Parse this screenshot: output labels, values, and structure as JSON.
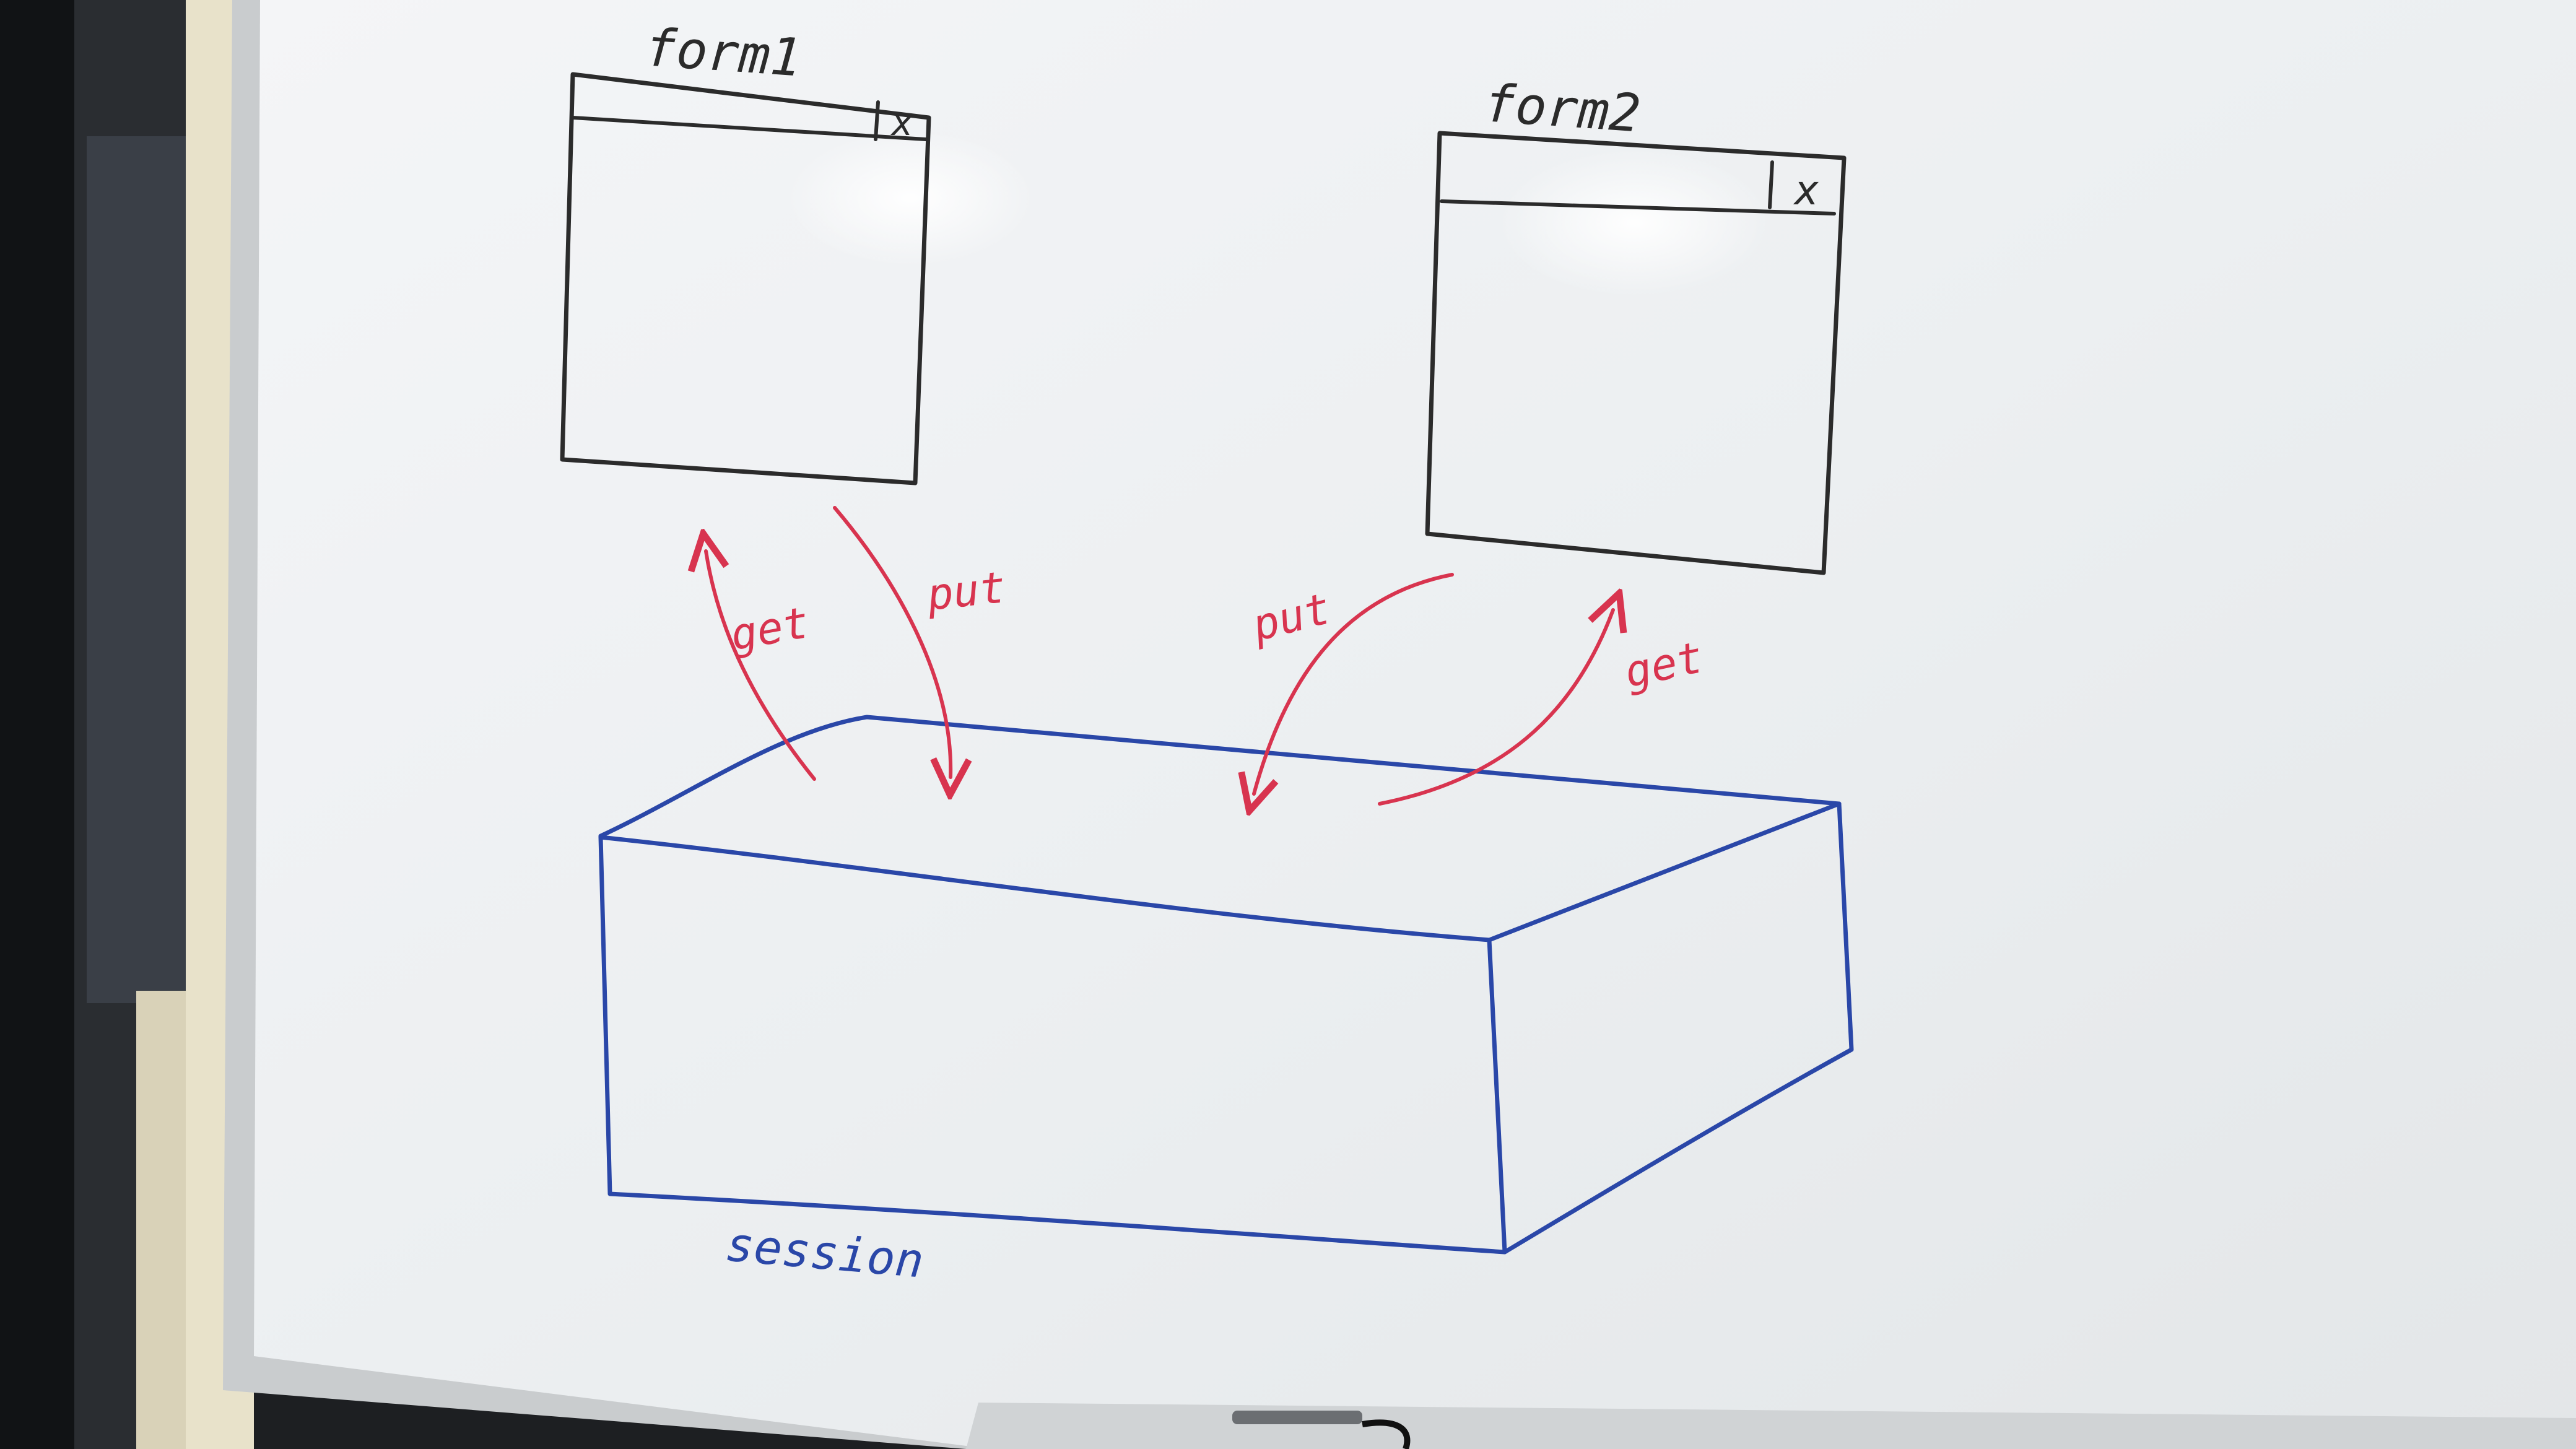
{
  "colors": {
    "board": "#eef0f2",
    "frame": "#c8cbcd",
    "wall": "#e4ddc6",
    "black_ink": "#2b2b2b",
    "red_ink": "#d8344f",
    "blue_ink": "#2a47a8"
  },
  "forms": [
    {
      "title": "form1",
      "close": "x"
    },
    {
      "title": "form2",
      "close": "x"
    }
  ],
  "arrows": [
    {
      "label": "get"
    },
    {
      "label": "put"
    },
    {
      "label": "put"
    },
    {
      "label": "get"
    }
  ],
  "store": {
    "label": "session"
  }
}
